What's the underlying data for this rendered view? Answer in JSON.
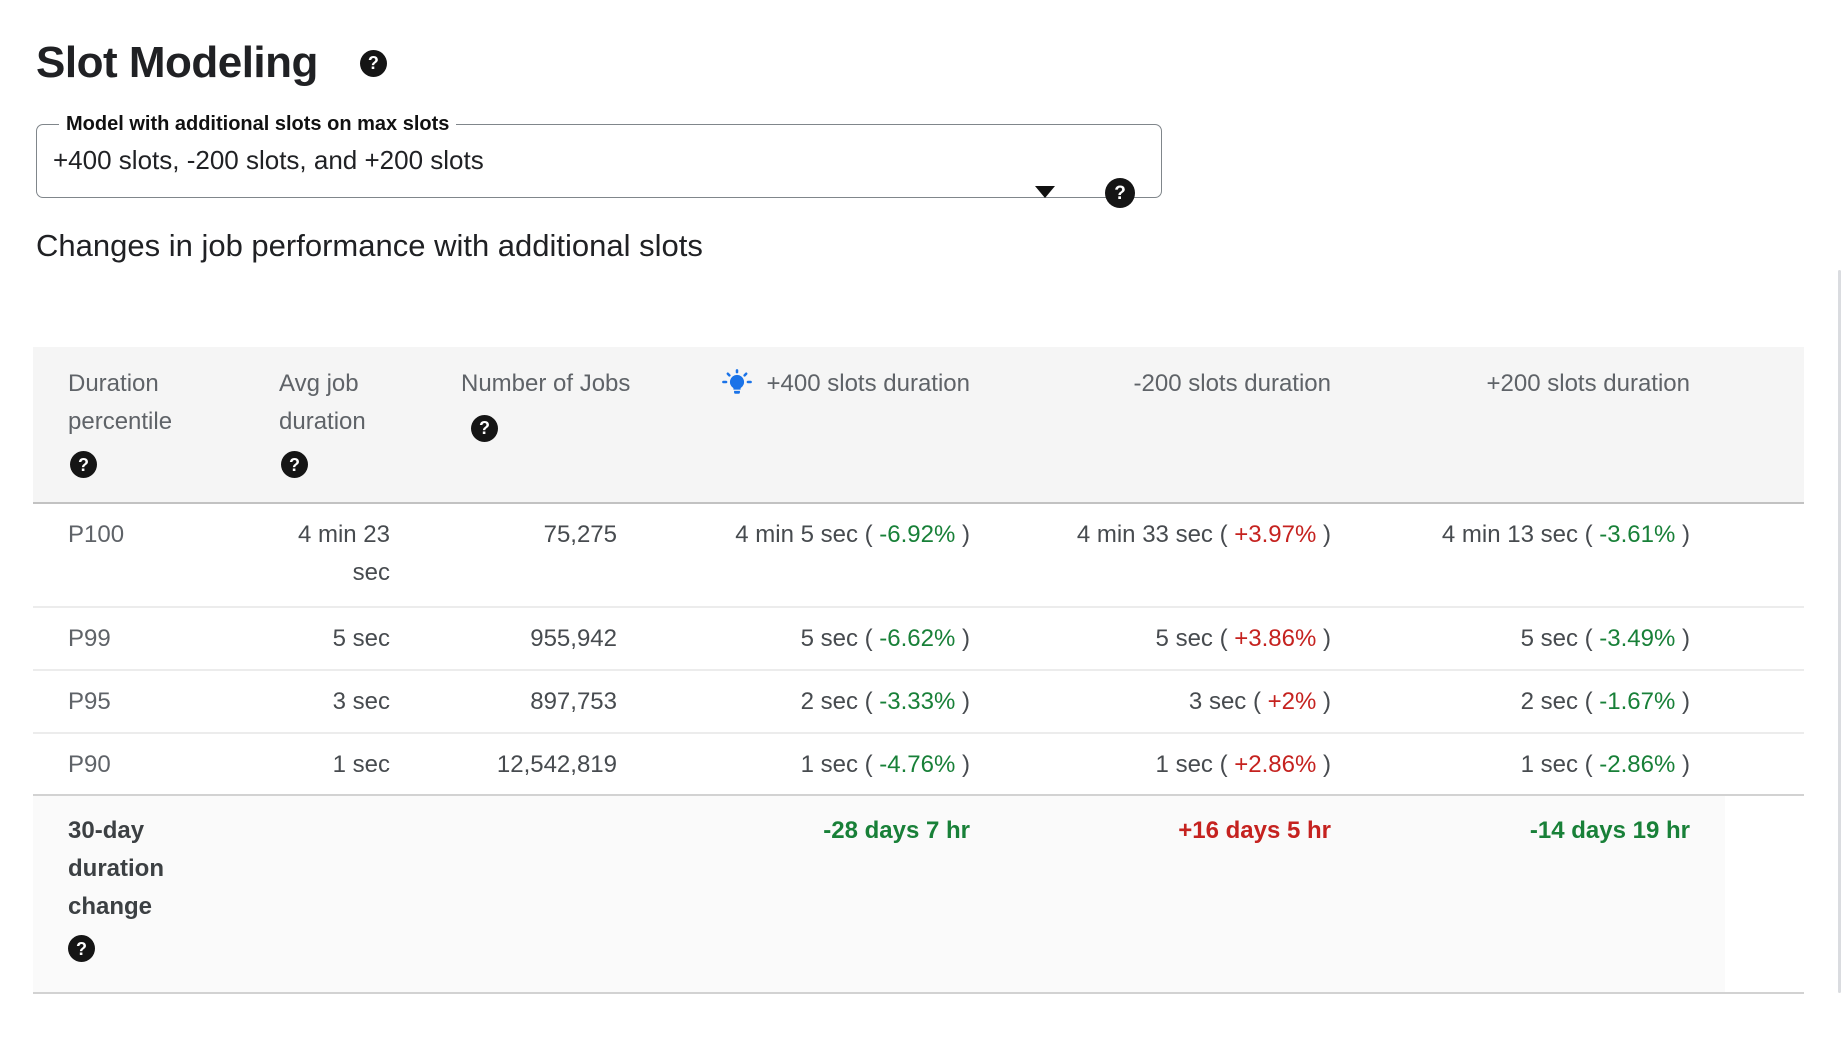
{
  "title": {
    "text": "Slot Modeling"
  },
  "icons": {
    "help_glyph": "?"
  },
  "model_select": {
    "label": "Model with additional slots on max slots",
    "value": "+400 slots, -200 slots, and +200 slots"
  },
  "section_heading": "Changes in job performance with additional slots",
  "table": {
    "columns": [
      {
        "label": "Duration percentile",
        "help": true
      },
      {
        "label": "Avg job duration",
        "help": true
      },
      {
        "label": "Number of Jobs",
        "help": true
      },
      {
        "label": "+400 slots duration",
        "bulb": true
      },
      {
        "label": "-200 slots duration"
      },
      {
        "label": "+200 slots duration"
      }
    ],
    "rows": [
      {
        "percentile": "P100",
        "avg_duration": "4 min 23 sec",
        "num_jobs": "75,275",
        "plus400": {
          "duration": "4 min 5 sec",
          "pct": "-6.92%"
        },
        "minus200": {
          "duration": "4 min 33 sec",
          "pct": "+3.97%"
        },
        "plus200": {
          "duration": "4 min 13 sec",
          "pct": "-3.61%"
        }
      },
      {
        "percentile": "P99",
        "avg_duration": "5 sec",
        "num_jobs": "955,942",
        "plus400": {
          "duration": "5 sec",
          "pct": "-6.62%"
        },
        "minus200": {
          "duration": "5 sec",
          "pct": "+3.86%"
        },
        "plus200": {
          "duration": "5 sec",
          "pct": "-3.49%"
        }
      },
      {
        "percentile": "P95",
        "avg_duration": "3 sec",
        "num_jobs": "897,753",
        "plus400": {
          "duration": "2 sec",
          "pct": "-3.33%"
        },
        "minus200": {
          "duration": "3 sec",
          "pct": "+2%"
        },
        "plus200": {
          "duration": "2 sec",
          "pct": "-1.67%"
        }
      },
      {
        "percentile": "P90",
        "avg_duration": "1 sec",
        "num_jobs": "12,542,819",
        "plus400": {
          "duration": "1 sec",
          "pct": "-4.76%"
        },
        "minus200": {
          "duration": "1 sec",
          "pct": "+2.86%"
        },
        "plus200": {
          "duration": "1 sec",
          "pct": "-2.86%"
        }
      }
    ],
    "summary_row": {
      "label": "30-day duration change",
      "plus400": "-28 days 7 hr",
      "minus200": "+16 days 5 hr",
      "plus200": "-14 days 19 hr"
    }
  },
  "colors": {
    "decrease_green": "#188038",
    "increase_red": "#c5221f",
    "bulb_blue": "#1a73e8",
    "header_bg": "#f5f5f5",
    "summary_bg": "#fafafa"
  }
}
